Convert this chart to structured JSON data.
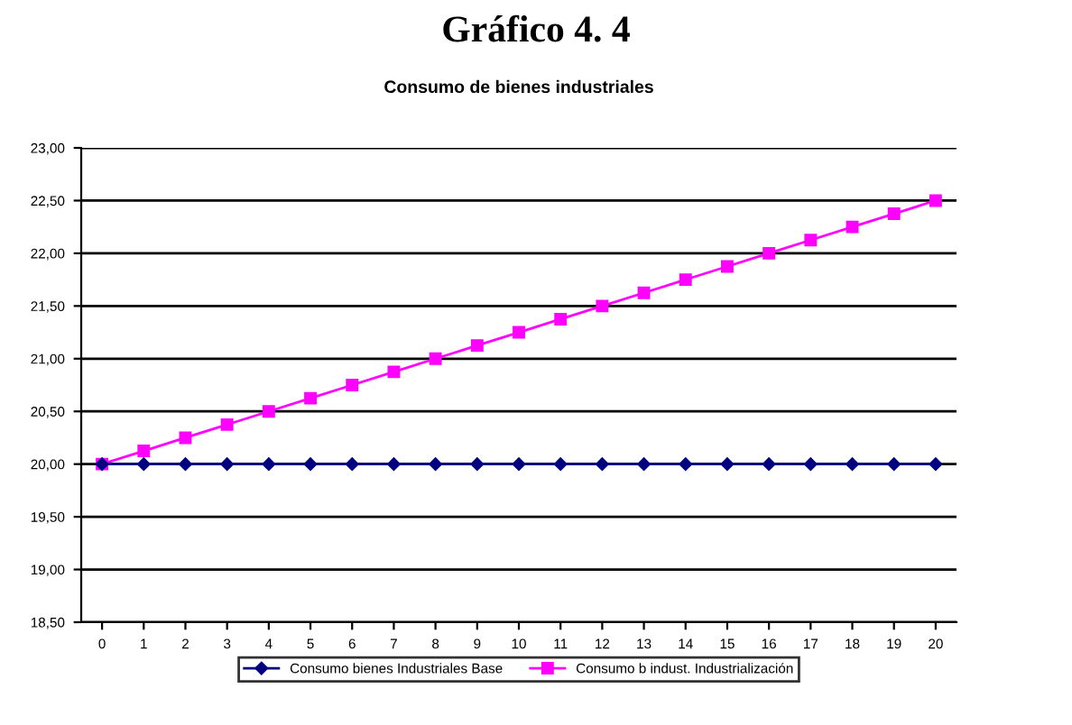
{
  "chart_data": {
    "type": "line",
    "title": "Gráfico 4. 4",
    "subtitle": "Consumo de bienes industriales",
    "categories": [
      "0",
      "1",
      "2",
      "3",
      "4",
      "5",
      "6",
      "7",
      "8",
      "9",
      "10",
      "11",
      "12",
      "13",
      "14",
      "15",
      "16",
      "17",
      "18",
      "19",
      "20"
    ],
    "series": [
      {
        "name": "Consumo bienes Industriales Base",
        "color": "#000080",
        "marker": "diamond",
        "values": [
          20,
          20,
          20,
          20,
          20,
          20,
          20,
          20,
          20,
          20,
          20,
          20,
          20,
          20,
          20,
          20,
          20,
          20,
          20,
          20,
          20
        ]
      },
      {
        "name": "Consumo b indust. Industrialización",
        "color": "#ff00ff",
        "marker": "square",
        "values": [
          20,
          20.125,
          20.25,
          20.375,
          20.5,
          20.625,
          20.75,
          20.875,
          21,
          21.125,
          21.25,
          21.375,
          21.5,
          21.625,
          21.75,
          21.875,
          22,
          22.125,
          22.25,
          22.375,
          22.5
        ]
      }
    ],
    "ylim": [
      18.5,
      23
    ],
    "yticks": [
      {
        "value": 18.5,
        "label": "18,50"
      },
      {
        "value": 19,
        "label": "19,00"
      },
      {
        "value": 19.5,
        "label": "19,50"
      },
      {
        "value": 20,
        "label": "20,00"
      },
      {
        "value": 20.5,
        "label": "20,50"
      },
      {
        "value": 21,
        "label": "21,00"
      },
      {
        "value": 21.5,
        "label": "21,50"
      },
      {
        "value": 22,
        "label": "22,00"
      },
      {
        "value": 22.5,
        "label": "22,50"
      },
      {
        "value": 23,
        "label": "23,00"
      }
    ],
    "grid": "y",
    "legend": "bottom",
    "line_style": "solid"
  }
}
